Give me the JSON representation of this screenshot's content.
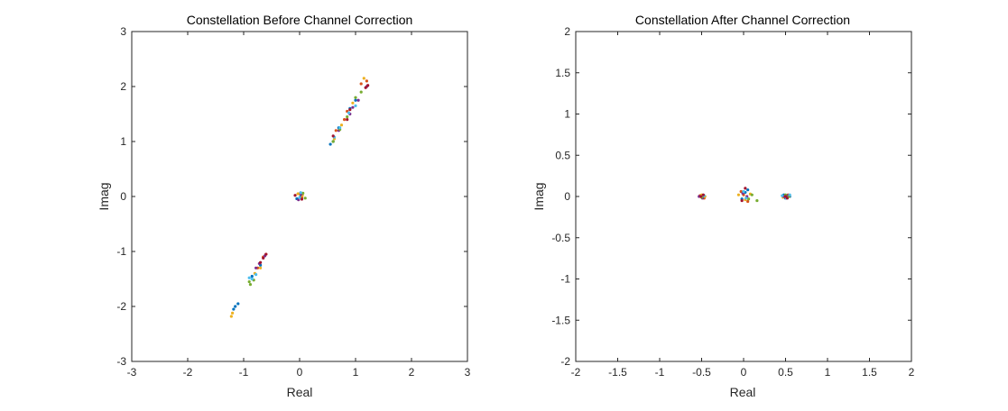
{
  "chart_data": [
    {
      "type": "scatter",
      "title": "Constellation Before Channel Correction",
      "xlabel": "Real",
      "ylabel": "Imag",
      "xlim": [
        -3,
        3
      ],
      "ylim": [
        -3,
        3
      ],
      "xticks": [
        "-3",
        "-2",
        "-1",
        "0",
        "1",
        "2",
        "3"
      ],
      "yticks": [
        "-3",
        "-2",
        "-1",
        "0",
        "1",
        "2",
        "3"
      ],
      "grid": false,
      "series": [
        {
          "color": "#0072BD",
          "points": [
            [
              -1.15,
              -2.0
            ],
            [
              -1.1,
              -1.95
            ],
            [
              -1.18,
              -2.05
            ],
            [
              -0.85,
              -1.45
            ],
            [
              -0.7,
              -1.25
            ],
            [
              0.02,
              0.0
            ],
            [
              -0.05,
              -0.04
            ],
            [
              0.6,
              1.0
            ],
            [
              0.7,
              1.25
            ],
            [
              0.9,
              1.6
            ],
            [
              1.0,
              1.75
            ],
            [
              0.55,
              0.95
            ]
          ]
        },
        {
          "color": "#D95319",
          "points": [
            [
              -0.75,
              -1.3
            ],
            [
              -0.65,
              -1.1
            ],
            [
              -0.6,
              -1.05
            ],
            [
              0.0,
              0.05
            ],
            [
              0.04,
              -0.02
            ],
            [
              0.65,
              1.2
            ],
            [
              0.8,
              1.4
            ],
            [
              1.1,
              2.05
            ],
            [
              1.2,
              2.1
            ],
            [
              0.85,
              1.55
            ]
          ]
        },
        {
          "color": "#EDB120",
          "points": [
            [
              -1.22,
              -2.18
            ],
            [
              -1.2,
              -2.12
            ],
            [
              -0.8,
              -1.4
            ],
            [
              -0.7,
              -1.3
            ],
            [
              0.05,
              0.02
            ],
            [
              -0.03,
              0.05
            ],
            [
              0.75,
              1.3
            ],
            [
              0.95,
              1.7
            ],
            [
              1.15,
              2.15
            ],
            [
              0.62,
              1.05
            ]
          ]
        },
        {
          "color": "#7E2F8E",
          "points": [
            [
              -0.78,
              -1.3
            ],
            [
              -0.72,
              -1.22
            ],
            [
              -0.62,
              -1.08
            ],
            [
              -0.02,
              -0.06
            ],
            [
              0.03,
              0.04
            ],
            [
              0.7,
              1.2
            ],
            [
              0.9,
              1.5
            ],
            [
              1.05,
              1.75
            ],
            [
              0.95,
              1.62
            ],
            [
              1.2,
              2.0
            ]
          ]
        },
        {
          "color": "#77AC30",
          "points": [
            [
              -0.88,
              -1.6
            ],
            [
              -0.82,
              -1.52
            ],
            [
              -0.9,
              -1.55
            ],
            [
              0.1,
              -0.03
            ],
            [
              0.06,
              0.06
            ],
            [
              0.6,
              1.0
            ],
            [
              0.85,
              1.45
            ],
            [
              1.1,
              1.9
            ],
            [
              1.0,
              1.8
            ],
            [
              0.72,
              1.22
            ]
          ]
        },
        {
          "color": "#4DBEEE",
          "points": [
            [
              -0.85,
              -1.5
            ],
            [
              -0.78,
              -1.42
            ],
            [
              -0.9,
              -1.48
            ],
            [
              0.0,
              -0.02
            ],
            [
              0.02,
              0.07
            ],
            [
              0.72,
              1.25
            ],
            [
              0.88,
              1.52
            ],
            [
              1.0,
              1.65
            ],
            [
              0.62,
              1.08
            ]
          ]
        },
        {
          "color": "#A2142F",
          "points": [
            [
              -0.6,
              -1.05
            ],
            [
              -0.65,
              -1.12
            ],
            [
              -0.7,
              -1.2
            ],
            [
              -0.08,
              0.02
            ],
            [
              0.04,
              -0.05
            ],
            [
              0.6,
              1.1
            ],
            [
              0.85,
              1.4
            ],
            [
              1.18,
              1.98
            ],
            [
              1.22,
              2.02
            ],
            [
              0.9,
              1.58
            ]
          ]
        }
      ]
    },
    {
      "type": "scatter",
      "title": "Constellation After Channel Correction",
      "xlabel": "Real",
      "ylabel": "Imag",
      "xlim": [
        -2,
        2
      ],
      "ylim": [
        -2,
        2
      ],
      "xticks": [
        "-2",
        "-1.5",
        "-1",
        "-0.5",
        "0",
        "0.5",
        "1",
        "1.5",
        "2"
      ],
      "yticks": [
        "-2",
        "-1.5",
        "-1",
        "-0.5",
        "0",
        "0.5",
        "1",
        "1.5",
        "2"
      ],
      "grid": false,
      "series": [
        {
          "color": "#0072BD",
          "points": [
            [
              -0.5,
              0.0
            ],
            [
              -0.48,
              -0.01
            ],
            [
              0.5,
              0.01
            ],
            [
              0.52,
              -0.01
            ],
            [
              0.48,
              0.02
            ],
            [
              0.02,
              0.05
            ],
            [
              -0.02,
              -0.03
            ],
            [
              0.05,
              0.08
            ],
            [
              0.55,
              0.0
            ],
            [
              0.5,
              -0.02
            ]
          ]
        },
        {
          "color": "#D95319",
          "points": [
            [
              -0.52,
              0.01
            ],
            [
              -0.47,
              -0.02
            ],
            [
              0.0,
              0.02
            ],
            [
              0.05,
              -0.06
            ],
            [
              -0.03,
              0.06
            ],
            [
              0.49,
              0.0
            ],
            [
              0.53,
              0.02
            ]
          ]
        },
        {
          "color": "#EDB120",
          "points": [
            [
              -0.5,
              0.02
            ],
            [
              -0.46,
              0.0
            ],
            [
              0.02,
              -0.04
            ],
            [
              0.08,
              0.03
            ],
            [
              -0.06,
              0.02
            ],
            [
              0.5,
              0.0
            ],
            [
              0.47,
              -0.01
            ]
          ]
        },
        {
          "color": "#7E2F8E",
          "points": [
            [
              -0.49,
              -0.02
            ],
            [
              -0.53,
              0.0
            ],
            [
              -0.01,
              0.04
            ],
            [
              0.04,
              0.0
            ],
            [
              0.52,
              0.01
            ],
            [
              0.48,
              0.0
            ]
          ]
        },
        {
          "color": "#77AC30",
          "points": [
            [
              -0.5,
              -0.01
            ],
            [
              0.06,
              -0.03
            ],
            [
              0.16,
              -0.05
            ],
            [
              0.1,
              0.02
            ],
            [
              0.5,
              0.02
            ],
            [
              0.54,
              0.0
            ]
          ]
        },
        {
          "color": "#4DBEEE",
          "points": [
            [
              -0.47,
              0.01
            ],
            [
              0.0,
              0.06
            ],
            [
              0.03,
              -0.02
            ],
            [
              0.51,
              -0.02
            ],
            [
              0.55,
              0.02
            ],
            [
              0.46,
              0.01
            ]
          ]
        },
        {
          "color": "#A2142F",
          "points": [
            [
              -0.51,
              0.0
            ],
            [
              -0.48,
              0.02
            ],
            [
              -0.02,
              -0.05
            ],
            [
              0.02,
              0.1
            ],
            [
              0.5,
              0.0
            ],
            [
              0.52,
              -0.02
            ]
          ]
        }
      ]
    }
  ]
}
